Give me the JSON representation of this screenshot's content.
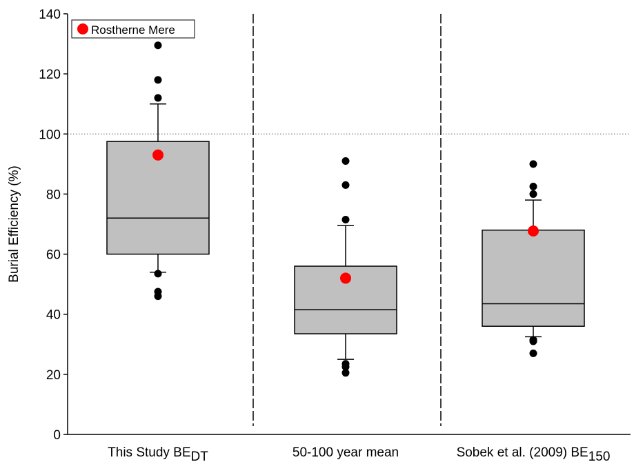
{
  "chart_data": {
    "type": "box",
    "y_label": "Burial Efficiency (%)",
    "categories": [
      {
        "text": "This Study BE",
        "sub": "DT"
      },
      {
        "text": "50-100 year mean",
        "sub": null
      },
      {
        "text": "Sobek et al. (2009) BE",
        "sub": "150"
      }
    ],
    "boxes": [
      {
        "whisker_low": 54,
        "q1": 60,
        "median": 72,
        "q3": 97.5,
        "whisker_high": 110,
        "outliers": [
          129.5,
          118,
          112,
          53.5,
          47.5,
          46
        ]
      },
      {
        "whisker_low": 25,
        "q1": 33.5,
        "median": 41.5,
        "q3": 56,
        "whisker_high": 69.5,
        "outliers": [
          91,
          83,
          71.5,
          23.5,
          22.5,
          20.5
        ]
      },
      {
        "whisker_low": 32.5,
        "q1": 36,
        "median": 43.5,
        "q3": 68,
        "whisker_high": 78,
        "outliers": [
          90,
          82.5,
          80,
          31.5,
          31,
          27
        ]
      }
    ],
    "box_color": "#c0c0c0",
    "highlight": {
      "name": "Rostherne Mere",
      "color": "#ff0000",
      "values": [
        93,
        52,
        67.7
      ]
    },
    "reference_line": 100,
    "ylim": [
      0,
      140
    ],
    "yticks": [
      0,
      20,
      40,
      60,
      80,
      100,
      120,
      140
    ],
    "legend": "upper left"
  }
}
